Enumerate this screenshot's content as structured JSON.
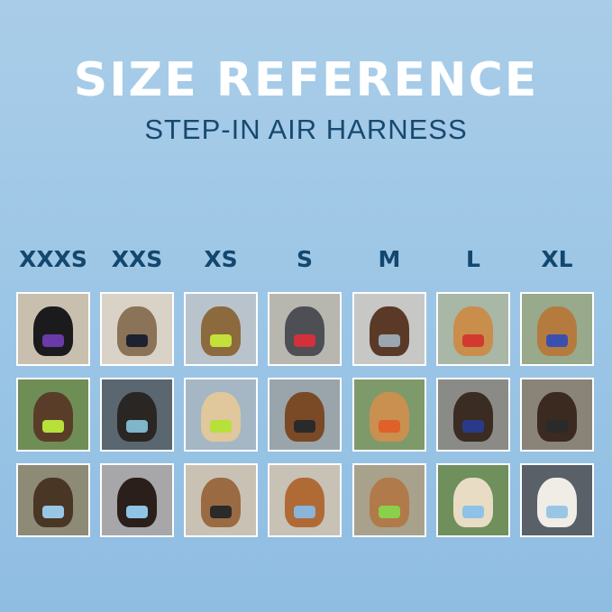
{
  "header": {
    "title": "SIZE REFERENCE",
    "subtitle": "STEP-IN AIR HARNESS"
  },
  "sizes": [
    "XXXS",
    "XXS",
    "XS",
    "S",
    "M",
    "L",
    "XL"
  ],
  "photos": [
    [
      {
        "bg": "#c9bfae",
        "pet": "#1b1b1d",
        "harness": "#6a3aa8"
      },
      {
        "bg": "#d9d2c6",
        "pet": "#8a7356",
        "harness": "#1d2230"
      },
      {
        "bg": "#b9c3cc",
        "pet": "#8c6a3e",
        "harness": "#c4e03a"
      },
      {
        "bg": "#b7b7b0",
        "pet": "#4d4f55",
        "harness": "#d2303a"
      },
      {
        "bg": "#c7c7c5",
        "pet": "#5a3a26",
        "harness": "#9aa7b0"
      },
      {
        "bg": "#a8b7a6",
        "pet": "#c98e4c",
        "harness": "#d23a2f"
      },
      {
        "bg": "#98a98c",
        "pet": "#b57b3e",
        "harness": "#3d4fae"
      }
    ],
    [
      {
        "bg": "#6f8e55",
        "pet": "#5a3d28",
        "harness": "#b8e03a"
      },
      {
        "bg": "#5a6770",
        "pet": "#2a2624",
        "harness": "#7fb6c9"
      },
      {
        "bg": "#a5b7c4",
        "pet": "#e0c79c",
        "harness": "#b8e03a"
      },
      {
        "bg": "#9aa4ab",
        "pet": "#7a4a26",
        "harness": "#2a2a2a"
      },
      {
        "bg": "#7e9a6a",
        "pet": "#c9904f",
        "harness": "#e0602a"
      },
      {
        "bg": "#8a8a86",
        "pet": "#3a2c22",
        "harness": "#2a3a8a"
      },
      {
        "bg": "#8a8478",
        "pet": "#3a2a20",
        "harness": "#2a2a2a"
      }
    ],
    [
      {
        "bg": "#8d8a76",
        "pet": "#4a3624",
        "harness": "#9ac6e6"
      },
      {
        "bg": "#a7a6a8",
        "pet": "#2a1f1a",
        "harness": "#8fc4e6"
      },
      {
        "bg": "#c9c2b4",
        "pet": "#9a6a42",
        "harness": "#2a2a2a"
      },
      {
        "bg": "#c7c1b6",
        "pet": "#b06a35",
        "harness": "#8ab4d8"
      },
      {
        "bg": "#a8a28c",
        "pet": "#b07a4a",
        "harness": "#8ad04a"
      },
      {
        "bg": "#6f8f5c",
        "pet": "#e8dcc4",
        "harness": "#8ec2e6"
      },
      {
        "bg": "#5a6068",
        "pet": "#f0ece6",
        "harness": "#9ac6e6"
      }
    ]
  ]
}
